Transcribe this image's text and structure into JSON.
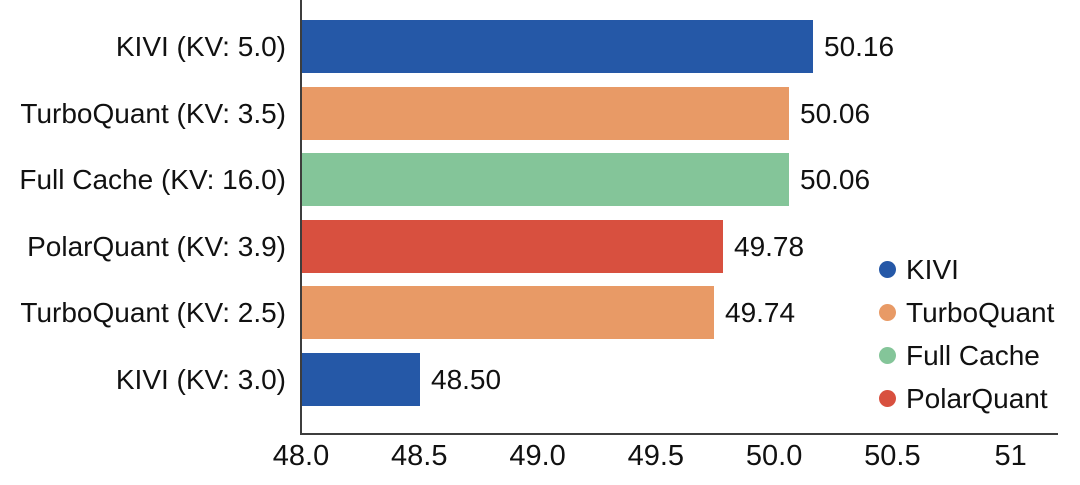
{
  "chart_data": {
    "type": "bar",
    "orientation": "horizontal",
    "title": "",
    "xlabel": "",
    "ylabel": "",
    "grid": false,
    "xlim": [
      48.0,
      51.2
    ],
    "bars": [
      {
        "label": "KIVI (KV: 5.0)",
        "series": "KIVI",
        "value": 50.16,
        "value_label": "50.16"
      },
      {
        "label": "TurboQuant (KV: 3.5)",
        "series": "TurboQuant",
        "value": 50.06,
        "value_label": "50.06"
      },
      {
        "label": "Full Cache (KV: 16.0)",
        "series": "Full Cache",
        "value": 50.06,
        "value_label": "50.06"
      },
      {
        "label": "PolarQuant (KV: 3.9)",
        "series": "PolarQuant",
        "value": 49.78,
        "value_label": "49.78"
      },
      {
        "label": "TurboQuant (KV: 2.5)",
        "series": "TurboQuant",
        "value": 49.74,
        "value_label": "49.74"
      },
      {
        "label": "KIVI (KV: 3.0)",
        "series": "KIVI",
        "value": 48.5,
        "value_label": "48.50"
      }
    ],
    "xticks": [
      {
        "value": 48.0,
        "label": "48.0"
      },
      {
        "value": 48.5,
        "label": "48.5"
      },
      {
        "value": 49.0,
        "label": "49.0"
      },
      {
        "value": 49.5,
        "label": "49.5"
      },
      {
        "value": 50.0,
        "label": "50.0"
      },
      {
        "value": 50.5,
        "label": "50.5"
      },
      {
        "value": 51.0,
        "label": "51"
      }
    ],
    "colors": {
      "KIVI": "#2558a7",
      "TurboQuant": "#e89a66",
      "Full Cache": "#84c599",
      "PolarQuant": "#d8503f"
    },
    "legend": [
      {
        "name": "KIVI",
        "color": "#2558a7"
      },
      {
        "name": "TurboQuant",
        "color": "#e89a66"
      },
      {
        "name": "Full Cache",
        "color": "#84c599"
      },
      {
        "name": "PolarQuant",
        "color": "#d8503f"
      }
    ],
    "legend_position": "right-middle",
    "axis_color": "#3d3d3d",
    "text_color": "#111111"
  }
}
